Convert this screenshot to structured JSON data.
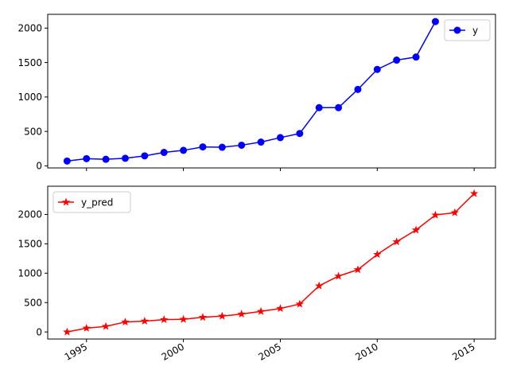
{
  "chart_data": [
    {
      "type": "line",
      "x": [
        1994,
        1995,
        1996,
        1997,
        1998,
        1999,
        2000,
        2001,
        2002,
        2003,
        2004,
        2005,
        2006,
        2007,
        2008,
        2009,
        2010,
        2011,
        2012,
        2013
      ],
      "series": [
        {
          "name": "y",
          "values": [
            70,
            105,
            95,
            110,
            145,
            195,
            225,
            275,
            270,
            300,
            345,
            410,
            470,
            845,
            845,
            1110,
            1400,
            1535,
            1580,
            2095
          ],
          "color": "#0000ff",
          "marker": "circle"
        }
      ],
      "xlim": [
        1993.0,
        2016.1
      ],
      "ylim": [
        -30,
        2200
      ],
      "xticks": [
        1995,
        2000,
        2005,
        2010,
        2015
      ],
      "yticks": [
        0,
        500,
        1000,
        1500,
        2000
      ],
      "ytick_labels": [
        "0",
        "500",
        "1000",
        "1500",
        "2000"
      ],
      "show_xtick_labels": false,
      "grid": false,
      "legend": "upper right"
    },
    {
      "type": "line",
      "x": [
        1994,
        1995,
        1996,
        1997,
        1998,
        1999,
        2000,
        2001,
        2002,
        2003,
        2004,
        2005,
        2006,
        2007,
        2008,
        2009,
        2010,
        2011,
        2012,
        2013,
        2014,
        2015
      ],
      "series": [
        {
          "name": "y_pred",
          "values": [
            0,
            65,
            95,
            170,
            185,
            210,
            215,
            250,
            270,
            305,
            350,
            400,
            475,
            785,
            950,
            1060,
            1320,
            1535,
            1735,
            1990,
            2030,
            2355
          ],
          "color": "#ff0000",
          "marker": "star"
        }
      ],
      "xlim": [
        1993.0,
        2016.1
      ],
      "ylim": [
        -120,
        2480
      ],
      "xticks": [
        1995,
        2000,
        2005,
        2010,
        2015
      ],
      "xtick_labels": [
        "1995",
        "2000",
        "2005",
        "2010",
        "2015"
      ],
      "yticks": [
        0,
        500,
        1000,
        1500,
        2000
      ],
      "ytick_labels": [
        "0",
        "500",
        "1000",
        "1500",
        "2000"
      ],
      "show_xtick_labels": true,
      "grid": false,
      "legend": "upper left"
    }
  ]
}
